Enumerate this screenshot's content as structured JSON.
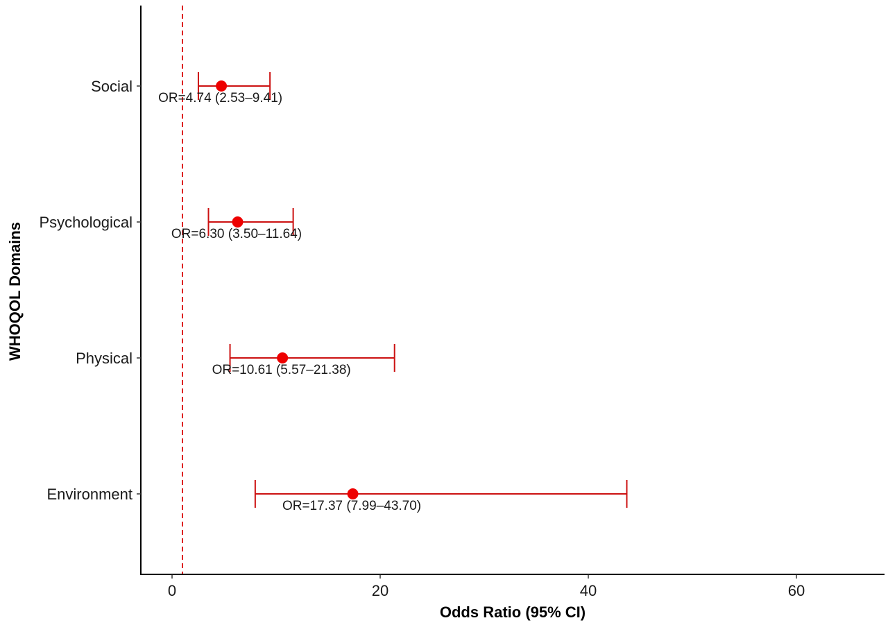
{
  "chart_data": {
    "type": "forest",
    "categories": [
      "Social",
      "Psychological",
      "Physical",
      "Environment"
    ],
    "estimates": [
      4.74,
      6.3,
      10.61,
      17.37
    ],
    "ci_lower": [
      2.53,
      3.5,
      5.57,
      7.99
    ],
    "ci_upper": [
      9.41,
      11.64,
      21.38,
      43.7
    ],
    "labels": [
      "OR=4.74 (2.53–9.41)",
      "OR=6.30 (3.50–11.64)",
      "OR=10.61 (5.57–21.38)",
      "OR=17.37 (7.99–43.70)"
    ],
    "reference_line": 1,
    "xlabel": "Odds Ratio (95% CI)",
    "ylabel": "WHOQOL Domains",
    "xlim": [
      -3,
      68
    ],
    "xticks": [
      0,
      20,
      40,
      60
    ],
    "grid": false,
    "legend": "none",
    "colors": {
      "point": "#ee0000",
      "errorbar": "#cc1111",
      "reference": "#dd2222",
      "axis": "#000000"
    }
  }
}
